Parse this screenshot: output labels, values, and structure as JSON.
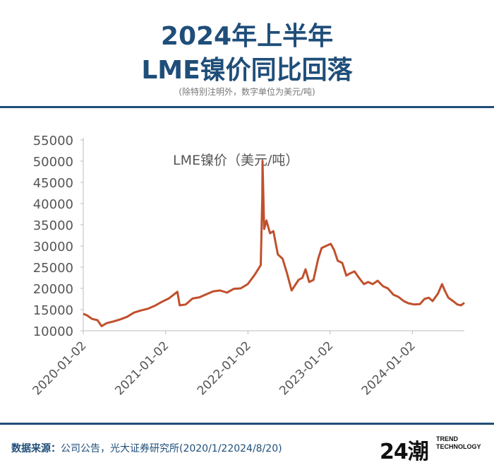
{
  "header": {
    "title_line1": "2024年上半年",
    "title_line2": "LME镍价同比回落",
    "subtitle": "(除特别注明外，数字单位为美元/吨)"
  },
  "footer": {
    "source_label": "数据来源：",
    "source_text": "公司公告，光大证券研究所(2020/1/22024/8/20)",
    "logo_mark": "24潮",
    "logo_line1": "TREND",
    "logo_line2": "TECHNOLOGY"
  },
  "colors": {
    "accent": "#1f4e79",
    "series": "#c0502d"
  },
  "chart_data": {
    "type": "line",
    "title": "LME镍价（美元/吨）",
    "x_ticks": [
      "2020-01-02",
      "2021-01-02",
      "2022-01-02",
      "2023-01-02",
      "2024-01-02"
    ],
    "xlim": [
      "2020-01-02",
      "2024-08-20"
    ],
    "ylim": [
      10000,
      55000
    ],
    "y_ticks": [
      10000,
      15000,
      20000,
      25000,
      30000,
      35000,
      40000,
      45000,
      50000,
      55000
    ],
    "grid": false,
    "series": [
      {
        "name": "LME镍价",
        "points": [
          [
            "2020-01-02",
            14000
          ],
          [
            "2020-01-20",
            13600
          ],
          [
            "2020-02-10",
            12800
          ],
          [
            "2020-03-05",
            12500
          ],
          [
            "2020-03-23",
            11100
          ],
          [
            "2020-04-15",
            11800
          ],
          [
            "2020-05-15",
            12200
          ],
          [
            "2020-06-15",
            12700
          ],
          [
            "2020-07-15",
            13300
          ],
          [
            "2020-08-15",
            14300
          ],
          [
            "2020-09-15",
            14800
          ],
          [
            "2020-10-15",
            15200
          ],
          [
            "2020-11-15",
            15900
          ],
          [
            "2020-12-15",
            16800
          ],
          [
            "2021-01-15",
            17600
          ],
          [
            "2021-02-23",
            19200
          ],
          [
            "2021-03-05",
            16000
          ],
          [
            "2021-04-01",
            16200
          ],
          [
            "2021-05-01",
            17600
          ],
          [
            "2021-06-01",
            17900
          ],
          [
            "2021-07-01",
            18600
          ],
          [
            "2021-08-01",
            19300
          ],
          [
            "2021-09-01",
            19500
          ],
          [
            "2021-10-01",
            19000
          ],
          [
            "2021-11-01",
            19900
          ],
          [
            "2021-12-01",
            20000
          ],
          [
            "2022-01-01",
            21000
          ],
          [
            "2022-02-01",
            23200
          ],
          [
            "2022-02-28",
            25500
          ],
          [
            "2022-03-07",
            42000
          ],
          [
            "2022-03-08",
            50000
          ],
          [
            "2022-03-15",
            34000
          ],
          [
            "2022-03-25",
            36000
          ],
          [
            "2022-04-10",
            33000
          ],
          [
            "2022-04-25",
            33500
          ],
          [
            "2022-05-15",
            28000
          ],
          [
            "2022-06-05",
            27000
          ],
          [
            "2022-06-25",
            23500
          ],
          [
            "2022-07-15",
            19500
          ],
          [
            "2022-08-15",
            22000
          ],
          [
            "2022-09-01",
            22500
          ],
          [
            "2022-09-15",
            24500
          ],
          [
            "2022-10-01",
            21500
          ],
          [
            "2022-10-20",
            22000
          ],
          [
            "2022-11-10",
            27000
          ],
          [
            "2022-11-25",
            29500
          ],
          [
            "2022-12-15",
            30000
          ],
          [
            "2023-01-05",
            30500
          ],
          [
            "2023-01-20",
            29000
          ],
          [
            "2023-02-05",
            26500
          ],
          [
            "2023-02-25",
            26000
          ],
          [
            "2023-03-15",
            23000
          ],
          [
            "2023-03-30",
            23500
          ],
          [
            "2023-04-20",
            24000
          ],
          [
            "2023-05-10",
            22500
          ],
          [
            "2023-06-01",
            21000
          ],
          [
            "2023-06-20",
            21500
          ],
          [
            "2023-07-10",
            21000
          ],
          [
            "2023-08-01",
            21800
          ],
          [
            "2023-08-25",
            20500
          ],
          [
            "2023-09-15",
            20000
          ],
          [
            "2023-10-10",
            18500
          ],
          [
            "2023-11-01",
            18000
          ],
          [
            "2023-11-25",
            17000
          ],
          [
            "2023-12-15",
            16500
          ],
          [
            "2024-01-10",
            16200
          ],
          [
            "2024-02-05",
            16300
          ],
          [
            "2024-02-25",
            17500
          ],
          [
            "2024-03-15",
            17800
          ],
          [
            "2024-04-01",
            17000
          ],
          [
            "2024-04-25",
            18800
          ],
          [
            "2024-05-13",
            21000
          ],
          [
            "2024-05-25",
            19500
          ],
          [
            "2024-06-10",
            17800
          ],
          [
            "2024-07-01",
            17000
          ],
          [
            "2024-07-20",
            16200
          ],
          [
            "2024-08-05",
            16000
          ],
          [
            "2024-08-20",
            16600
          ]
        ]
      }
    ]
  }
}
